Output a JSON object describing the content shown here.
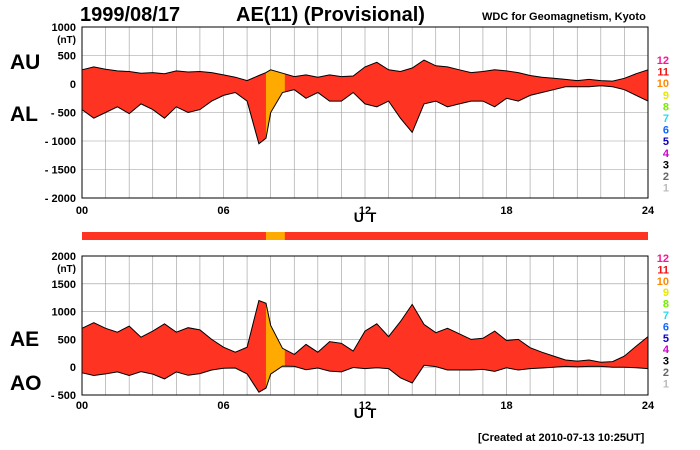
{
  "header": {
    "date": "1999/08/17",
    "title": "AE(11) (Provisional)",
    "source": "WDC for Geomagnetism, Kyoto"
  },
  "footer": {
    "created": "[Created at 2010-07-13 10:25UT]"
  },
  "colors": {
    "fill": "#ff3322",
    "fill_partial": "#ffaa00",
    "grid": "#9a9a9a",
    "outline": "#000000"
  },
  "legend": {
    "items": [
      {
        "label": "12",
        "color": "#ff1493"
      },
      {
        "label": "11",
        "color": "#ee1111"
      },
      {
        "label": "10",
        "color": "#ff8800"
      },
      {
        "label": "9",
        "color": "#e8e800"
      },
      {
        "label": "8",
        "color": "#77ee00"
      },
      {
        "label": "7",
        "color": "#22ddee"
      },
      {
        "label": "6",
        "color": "#1166ff"
      },
      {
        "label": "5",
        "color": "#1100bb"
      },
      {
        "label": "4",
        "color": "#cc00cc"
      },
      {
        "label": "3",
        "color": "#000000"
      },
      {
        "label": "2",
        "color": "#666666"
      },
      {
        "label": "1",
        "color": "#bbbbbb"
      }
    ]
  },
  "chart_data": [
    {
      "type": "area",
      "panel": "AU/AL",
      "side_labels": [
        "AU",
        "AL"
      ],
      "unit": "(nT)",
      "xlabel": "U T",
      "xlim": [
        0,
        24
      ],
      "xticks": [
        0,
        6,
        12,
        18,
        24
      ],
      "xtick_labels": [
        "00",
        "06",
        "12",
        "18",
        "24"
      ],
      "ylim": [
        -2000,
        1000
      ],
      "yticks": [
        1000,
        500,
        0,
        -500,
        -1000,
        -1500,
        -2000
      ],
      "ytick_labels": [
        "1000",
        "500",
        "0",
        "- 500",
        "- 1000",
        "- 1500",
        "- 2000"
      ],
      "grid": true,
      "series": [
        {
          "name": "AU",
          "x": [
            0,
            0.5,
            1,
            1.5,
            2,
            2.5,
            3,
            3.5,
            4,
            4.5,
            5,
            5.5,
            6,
            6.5,
            7,
            7.5,
            7.8,
            8,
            8.5,
            9,
            9.5,
            10,
            10.5,
            11,
            11.5,
            12,
            12.5,
            13,
            13.5,
            14,
            14.5,
            15,
            15.5,
            16,
            16.5,
            17,
            17.5,
            18,
            18.5,
            19,
            19.5,
            20,
            20.5,
            21,
            21.5,
            22,
            22.5,
            23,
            23.5,
            24
          ],
          "values": [
            250,
            300,
            260,
            230,
            220,
            190,
            200,
            180,
            230,
            210,
            220,
            200,
            160,
            120,
            60,
            150,
            200,
            250,
            190,
            130,
            160,
            120,
            160,
            130,
            140,
            300,
            380,
            250,
            220,
            280,
            420,
            320,
            300,
            250,
            200,
            220,
            250,
            230,
            200,
            150,
            120,
            100,
            80,
            60,
            80,
            60,
            50,
            100,
            180,
            250
          ]
        },
        {
          "name": "AL",
          "x": [
            0,
            0.5,
            1,
            1.5,
            2,
            2.5,
            3,
            3.5,
            4,
            4.5,
            5,
            5.5,
            6,
            6.5,
            7,
            7.5,
            7.8,
            8,
            8.5,
            9,
            9.5,
            10,
            10.5,
            11,
            11.5,
            12,
            12.5,
            13,
            13.5,
            14,
            14.5,
            15,
            15.5,
            16,
            16.5,
            17,
            17.5,
            18,
            18.5,
            19,
            19.5,
            20,
            20.5,
            21,
            21.5,
            22,
            22.5,
            23,
            23.5,
            24
          ],
          "values": [
            -450,
            -600,
            -500,
            -400,
            -520,
            -350,
            -450,
            -600,
            -400,
            -500,
            -450,
            -300,
            -200,
            -150,
            -300,
            -1050,
            -950,
            -500,
            -150,
            -100,
            -250,
            -150,
            -300,
            -300,
            -150,
            -350,
            -400,
            -300,
            -600,
            -850,
            -350,
            -300,
            -400,
            -350,
            -300,
            -300,
            -400,
            -250,
            -300,
            -200,
            -150,
            -100,
            -50,
            -50,
            -50,
            -30,
            -50,
            -100,
            -200,
            -300
          ]
        }
      ]
    },
    {
      "type": "area",
      "panel": "AE/AO",
      "side_labels": [
        "AE",
        "AO"
      ],
      "unit": "(nT)",
      "xlabel": "U T",
      "xlim": [
        0,
        24
      ],
      "xticks": [
        0,
        6,
        12,
        18,
        24
      ],
      "xtick_labels": [
        "00",
        "06",
        "12",
        "18",
        "24"
      ],
      "ylim": [
        -500,
        2000
      ],
      "yticks": [
        2000,
        1500,
        1000,
        500,
        0,
        -500
      ],
      "ytick_labels": [
        "2000",
        "1500",
        "1000",
        "500",
        "0",
        "- 500"
      ],
      "grid": true,
      "series": [
        {
          "name": "AE",
          "x": [
            0,
            0.5,
            1,
            1.5,
            2,
            2.5,
            3,
            3.5,
            4,
            4.5,
            5,
            5.5,
            6,
            6.5,
            7,
            7.5,
            7.8,
            8,
            8.5,
            9,
            9.5,
            10,
            10.5,
            11,
            11.5,
            12,
            12.5,
            13,
            13.5,
            14,
            14.5,
            15,
            15.5,
            16,
            16.5,
            17,
            17.5,
            18,
            18.5,
            19,
            19.5,
            20,
            20.5,
            21,
            21.5,
            22,
            22.5,
            23,
            23.5,
            24
          ],
          "values": [
            700,
            800,
            700,
            630,
            740,
            540,
            650,
            780,
            630,
            710,
            670,
            500,
            360,
            270,
            360,
            1200,
            1150,
            750,
            340,
            230,
            410,
            270,
            460,
            430,
            290,
            650,
            780,
            550,
            820,
            1130,
            770,
            620,
            700,
            600,
            500,
            520,
            650,
            480,
            500,
            350,
            270,
            200,
            130,
            110,
            130,
            90,
            100,
            200,
            380,
            550
          ]
        },
        {
          "name": "AO",
          "x": [
            0,
            0.5,
            1,
            1.5,
            2,
            2.5,
            3,
            3.5,
            4,
            4.5,
            5,
            5.5,
            6,
            6.5,
            7,
            7.5,
            7.8,
            8,
            8.5,
            9,
            9.5,
            10,
            10.5,
            11,
            11.5,
            12,
            12.5,
            13,
            13.5,
            14,
            14.5,
            15,
            15.5,
            16,
            16.5,
            17,
            17.5,
            18,
            18.5,
            19,
            19.5,
            20,
            20.5,
            21,
            21.5,
            22,
            22.5,
            23,
            23.5,
            24
          ],
          "values": [
            -100,
            -150,
            -120,
            -85,
            -150,
            -80,
            -125,
            -210,
            -85,
            -145,
            -115,
            -50,
            -20,
            -15,
            -120,
            -450,
            -375,
            -125,
            20,
            15,
            -45,
            -15,
            -70,
            -85,
            -5,
            -25,
            -10,
            -25,
            -190,
            -285,
            35,
            10,
            -50,
            -50,
            -50,
            -40,
            -75,
            -10,
            -50,
            -25,
            -15,
            0,
            15,
            5,
            15,
            15,
            0,
            0,
            -10,
            -25
          ]
        }
      ]
    }
  ]
}
